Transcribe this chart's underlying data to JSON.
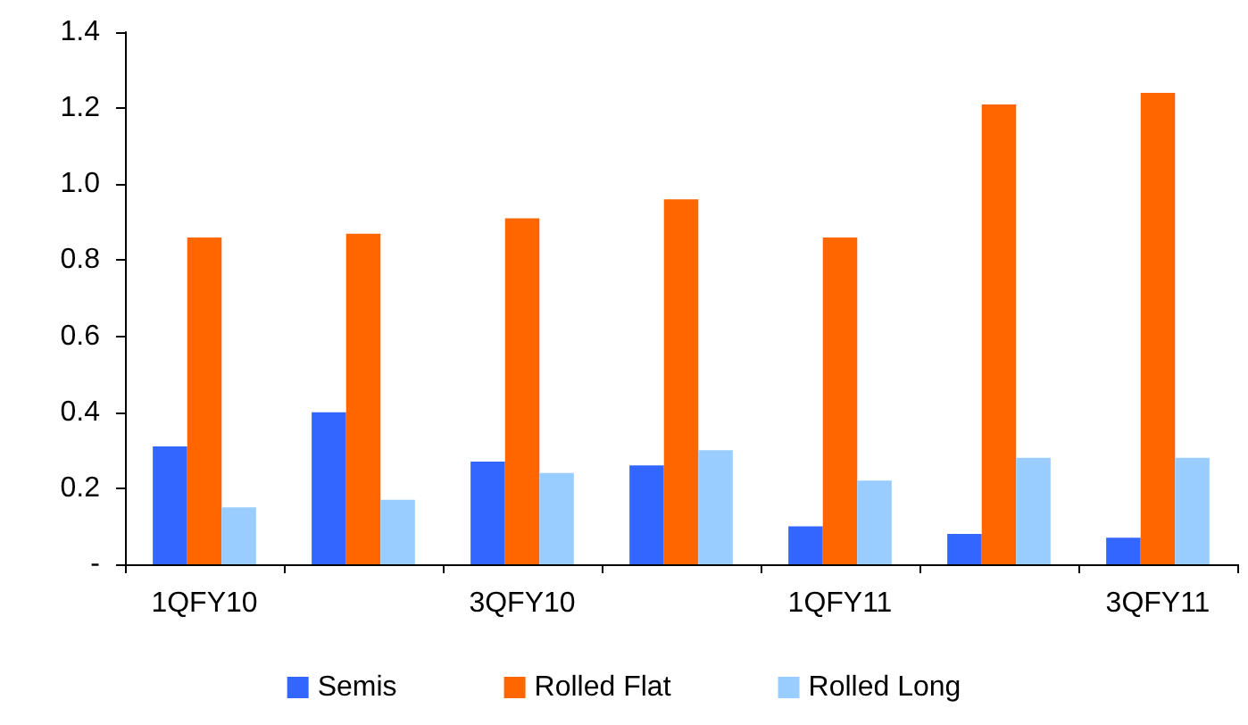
{
  "chart_data": {
    "type": "bar",
    "categories": [
      "1QFY10",
      null,
      "3QFY10",
      null,
      "1QFY11",
      null,
      "3QFY11"
    ],
    "series": [
      {
        "name": "Semis",
        "color": "#3366ff",
        "values": [
          0.31,
          0.4,
          0.27,
          0.26,
          0.1,
          0.08,
          0.07
        ]
      },
      {
        "name": "Rolled Flat",
        "color": "#ff6600",
        "values": [
          0.86,
          0.87,
          0.91,
          0.96,
          0.86,
          1.21,
          1.24
        ]
      },
      {
        "name": "Rolled Long",
        "color": "#99ccff",
        "values": [
          0.15,
          0.17,
          0.24,
          0.3,
          0.22,
          0.28,
          0.28
        ]
      }
    ],
    "ylim": [
      0,
      1.4
    ],
    "yticks": [
      {
        "value": 0,
        "label": "-"
      },
      0.2,
      0.4,
      0.6,
      0.8,
      {
        "value": 1,
        "label": "1.0"
      },
      1.2,
      1.4
    ],
    "grid": false,
    "legend": "bottom"
  }
}
